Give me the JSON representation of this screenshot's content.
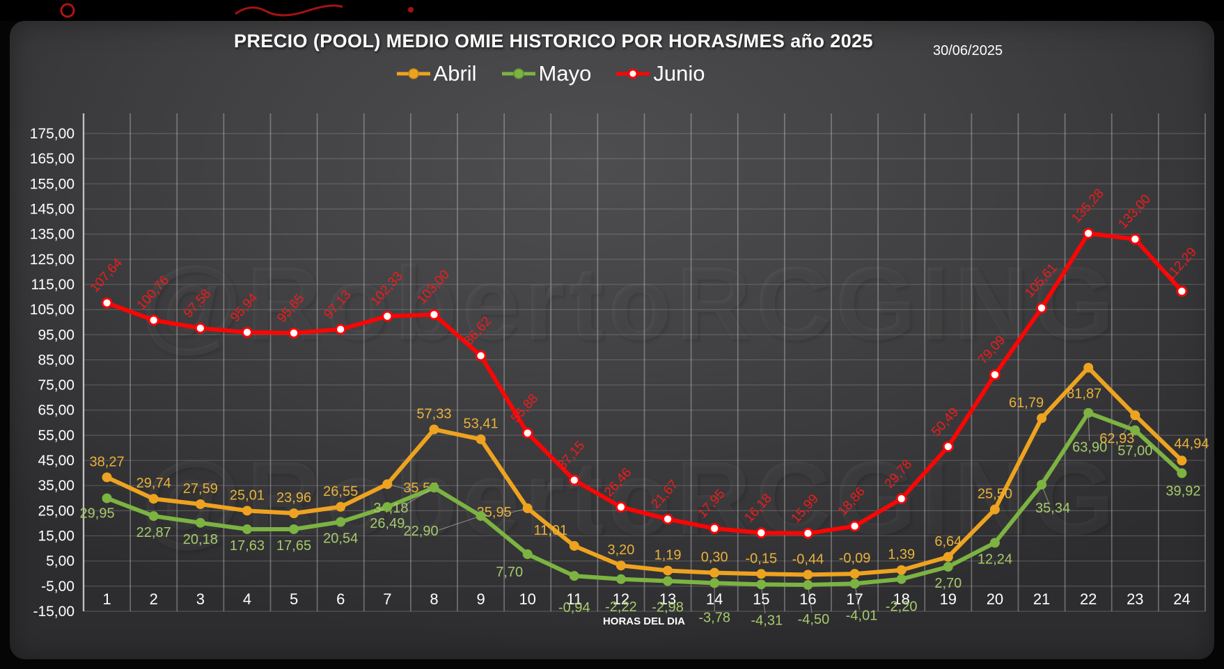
{
  "header": {
    "title": "PRECIO (POOL) MEDIO OMIE HISTORICO POR HORAS/MES año 2025",
    "date": "30/06/2025"
  },
  "watermark": "@RobertoRCGING",
  "colors": {
    "panel_background": "#414143",
    "grid": "#b0b0b0",
    "axis_text": "#ffffff",
    "abril": "#EEA320",
    "mayo": "#7CB342",
    "junio": "#FB0505"
  },
  "chart_data": {
    "type": "line",
    "title": "PRECIO (POOL) MEDIO OMIE HISTORICO POR HORAS/MES año 2025",
    "xlabel": "HORAS DEL DIA",
    "ylabel": "",
    "ylim": [
      -15,
      175
    ],
    "ytick_step": 10,
    "grid": true,
    "legend_position": "top",
    "x": [
      1,
      2,
      3,
      4,
      5,
      6,
      7,
      8,
      9,
      10,
      11,
      12,
      13,
      14,
      15,
      16,
      17,
      18,
      19,
      20,
      21,
      22,
      23,
      24
    ],
    "y_ticks": [
      "175,00",
      "165,00",
      "155,00",
      "145,00",
      "135,00",
      "125,00",
      "115,00",
      "105,00",
      "95,00",
      "85,00",
      "75,00",
      "65,00",
      "55,00",
      "45,00",
      "35,00",
      "25,00",
      "15,00",
      "5,00",
      "-5,00",
      "-15,00"
    ],
    "series": [
      {
        "name": "Abril",
        "color": "#EEA320",
        "label_color": "#E9B23A",
        "marker": "solid",
        "values": [
          38.27,
          29.74,
          27.59,
          25.01,
          23.96,
          26.55,
          35.55,
          57.33,
          53.41,
          25.95,
          11.01,
          3.2,
          1.19,
          0.3,
          -0.15,
          -0.44,
          -0.09,
          1.39,
          6.64,
          25.5,
          61.79,
          81.87,
          62.93,
          44.94
        ],
        "labels": [
          "38,27",
          "29,74",
          "27,59",
          "25,01",
          "23,96",
          "26,55",
          "35,55",
          "57,33",
          "53,41",
          "25,95",
          "11,01",
          "3,20",
          "1,19",
          "0,30",
          "-0,15",
          "-0,44",
          "-0,09",
          "1,39",
          "6,64",
          "25,50",
          "61,79",
          "81,87",
          "62,93",
          "44,94"
        ]
      },
      {
        "name": "Mayo",
        "color": "#7CB342",
        "label_color": "#A6CB6C",
        "marker": "solid",
        "values": [
          29.95,
          22.87,
          20.18,
          17.63,
          17.65,
          20.54,
          26.49,
          34.18,
          22.9,
          7.7,
          -0.94,
          -2.22,
          -2.98,
          -3.78,
          -4.31,
          -4.5,
          -4.01,
          -2.2,
          2.7,
          12.24,
          35.34,
          63.9,
          57.0,
          39.92
        ],
        "labels": [
          "29,95",
          "22,87",
          "20,18",
          "17,63",
          "17,65",
          "20,54",
          "26,49",
          "34,18",
          "22,90",
          "7,70",
          "-0,94",
          "-2,22",
          "-2,98",
          "-3,78",
          "-4,31",
          "-4,50",
          "-4,01",
          "-2,20",
          "2,70",
          "12,24",
          "35,34",
          "63,90",
          "57,00",
          "39,92"
        ]
      },
      {
        "name": "Junio",
        "color": "#FB0505",
        "label_color": "#F21B1B",
        "marker": "open",
        "values": [
          107.64,
          100.76,
          97.58,
          95.94,
          95.65,
          97.13,
          102.33,
          103.0,
          86.62,
          55.88,
          37.15,
          26.46,
          21.67,
          17.95,
          16.18,
          15.99,
          18.86,
          29.78,
          50.49,
          79.09,
          105.61,
          135.28,
          133.0,
          112.29
        ],
        "labels": [
          "107,64",
          "100,76",
          "97,58",
          "95,94",
          "95,65",
          "97,13",
          "102,33",
          "103,00",
          "86,62",
          "55,88",
          "37,15",
          "26,46",
          "21,67",
          "17,95",
          "16,18",
          "15,99",
          "18,86",
          "29,78",
          "50,49",
          "79,09",
          "105,61",
          "135,28",
          "133,00",
          "112,29"
        ]
      }
    ]
  }
}
